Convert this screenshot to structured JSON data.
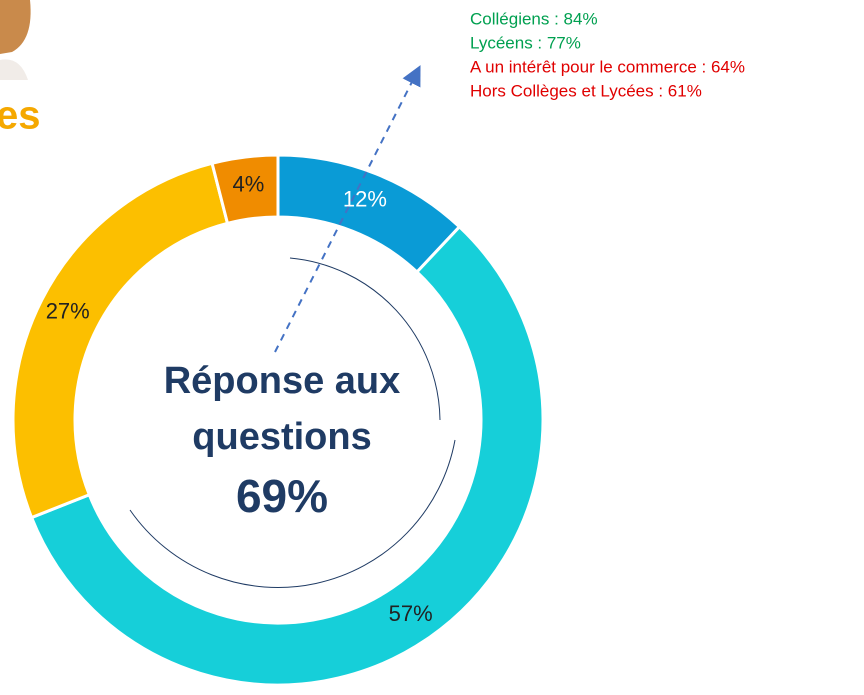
{
  "heading_fragment": "es",
  "chart_data": {
    "type": "donut",
    "center_title": "Réponse aux questions",
    "center_value": "69%",
    "categories": [
      null,
      null,
      null,
      null
    ],
    "values": [
      12,
      57,
      27,
      4
    ],
    "value_labels": [
      "12%",
      "57%",
      "27%",
      "4%"
    ],
    "colors": [
      "#0a9bd6",
      "#16cfd9",
      "#fcbf00",
      "#f08c00"
    ],
    "annotations": [
      {
        "text": "Collégiens : 84%",
        "color": "#00a050"
      },
      {
        "text": "Lycéens : 77%",
        "color": "#00a050"
      },
      {
        "text": "A un intérêt pour le commerce : 64%",
        "color": "#e00000"
      },
      {
        "text": "Hors Collèges et Lycées : 61%",
        "color": "#e00000"
      }
    ]
  }
}
